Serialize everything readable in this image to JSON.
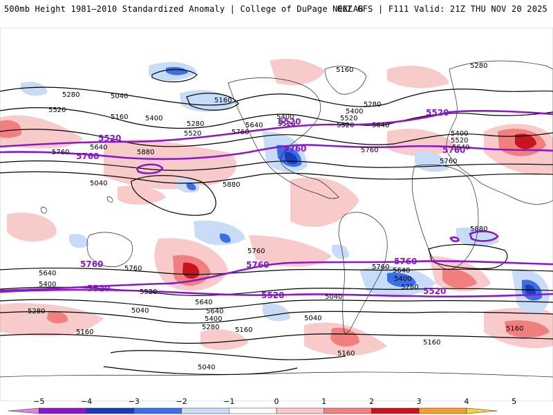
{
  "header": {
    "title": "500mb Height 1981–2010 Standardized Anomaly | College of DuPage NEXLAB",
    "run_info": "06Z GFS | F111 Valid: 21Z THU NOV 20 2025"
  },
  "legend": {
    "ticks": [
      "−5",
      "−4",
      "−3",
      "−2",
      "−1",
      "0",
      "1",
      "2",
      "3",
      "4",
      "5"
    ],
    "colors": [
      "#e07fe6",
      "#8a18c8",
      "#1a3cb4",
      "#3a6ee6",
      "#c8dcf8",
      "#ffffff",
      "#f8c8c8",
      "#f08080",
      "#c8141e",
      "#f0a030",
      "#f8d040"
    ]
  },
  "contour_labels": {
    "black": [
      "5280",
      "5040",
      "5160",
      "5520",
      "5400",
      "5280",
      "5160",
      "5040",
      "5760",
      "5640",
      "5520",
      "5880",
      "5880",
      "5640",
      "5760",
      "5160",
      "5280",
      "5400",
      "5520",
      "5640",
      "5280",
      "5520",
      "5520",
      "5760",
      "5400",
      "5520",
      "5760",
      "5400",
      "5640",
      "5880",
      "5760",
      "5640",
      "5400",
      "5280",
      "5160",
      "5040",
      "5760",
      "5640",
      "5520",
      "5400",
      "5640",
      "5760",
      "5640",
      "5400",
      "5280",
      "5040",
      "5160",
      "5040",
      "5160",
      "5280",
      "5160",
      "5160",
      "5040"
    ],
    "purple": [
      "5520",
      "5760",
      "5520",
      "5760",
      "5520",
      "5760",
      "5760",
      "5760",
      "5760",
      "5520",
      "5520",
      "5520"
    ]
  },
  "colors": {
    "purple_contour": "#8a18c8",
    "black_contour": "#000000",
    "positive_light": "#f8c8c8",
    "positive_mid": "#f08080",
    "positive_strong": "#c8141e",
    "negative_light": "#c8dcf8",
    "negative_mid": "#3a6ee6",
    "negative_strong": "#1a3cb4"
  }
}
